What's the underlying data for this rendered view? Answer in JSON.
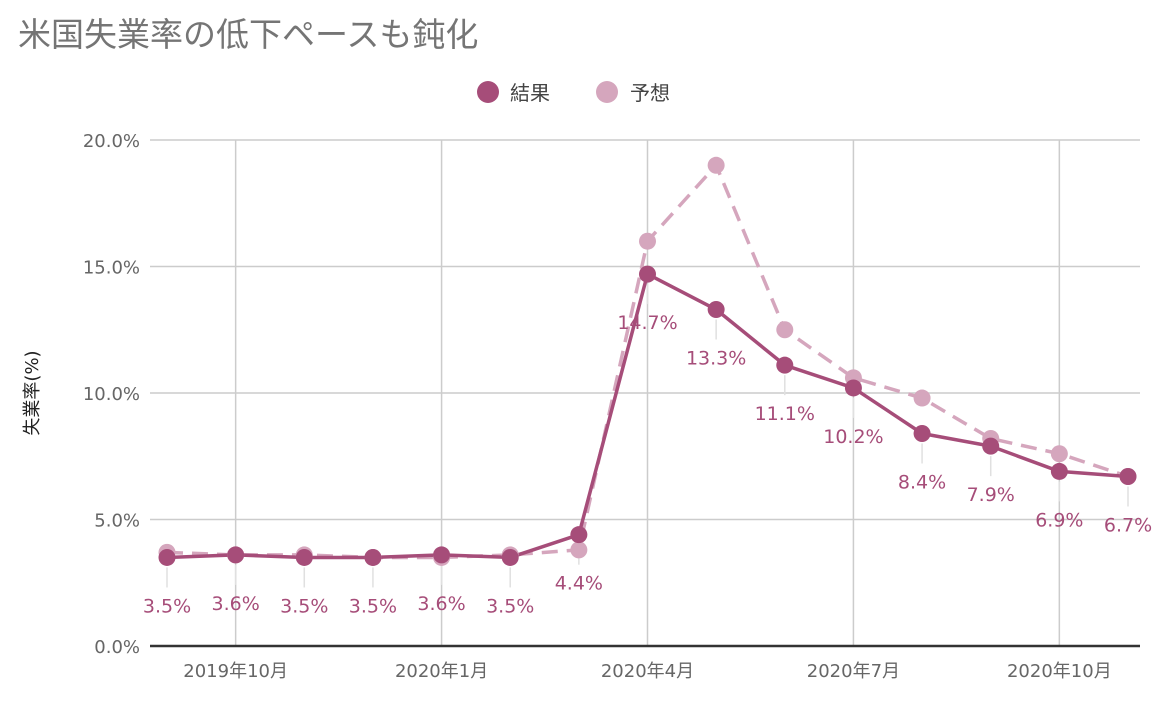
{
  "chart_data": {
    "type": "line",
    "title": "米国失業率の低下ペースも鈍化",
    "xlabel": "",
    "ylabel": "失業率(%)",
    "ylim": [
      0,
      20
    ],
    "yticks": [
      "0.0%",
      "5.0%",
      "10.0%",
      "15.0%",
      "20.0%"
    ],
    "x": [
      "2019年9月",
      "2019年10月",
      "2019年11月",
      "2019年12月",
      "2020年1月",
      "2020年2月",
      "2020年3月",
      "2020年4月",
      "2020年5月",
      "2020年6月",
      "2020年7月",
      "2020年8月",
      "2020年9月",
      "2020年10月",
      "2020年11月"
    ],
    "xtick_labels": [
      {
        "index": 1,
        "label": "2019年10月"
      },
      {
        "index": 4,
        "label": "2020年1月"
      },
      {
        "index": 7,
        "label": "2020年4月"
      },
      {
        "index": 10,
        "label": "2020年7月"
      },
      {
        "index": 13,
        "label": "2020年10月"
      }
    ],
    "grid": true,
    "legend_position": "top-center",
    "series": [
      {
        "name": "結果",
        "color": "#a64d79",
        "style": "solid",
        "values": [
          3.5,
          3.6,
          3.5,
          3.5,
          3.6,
          3.5,
          4.4,
          14.7,
          13.3,
          11.1,
          10.2,
          8.4,
          7.9,
          6.9,
          6.7
        ],
        "data_labels": [
          "3.5%",
          "3.6%",
          "3.5%",
          "3.5%",
          "3.6%",
          "3.5%",
          "4.4%",
          "14.7%",
          "13.3%",
          "11.1%",
          "10.2%",
          "8.4%",
          "7.9%",
          "6.9%",
          "6.7%"
        ]
      },
      {
        "name": "予想",
        "color": "#d5a6bd",
        "style": "dashed",
        "values": [
          3.7,
          3.6,
          3.6,
          3.5,
          3.5,
          3.6,
          3.8,
          16.0,
          19.0,
          12.5,
          10.6,
          9.8,
          8.2,
          7.6,
          6.7
        ]
      }
    ]
  }
}
